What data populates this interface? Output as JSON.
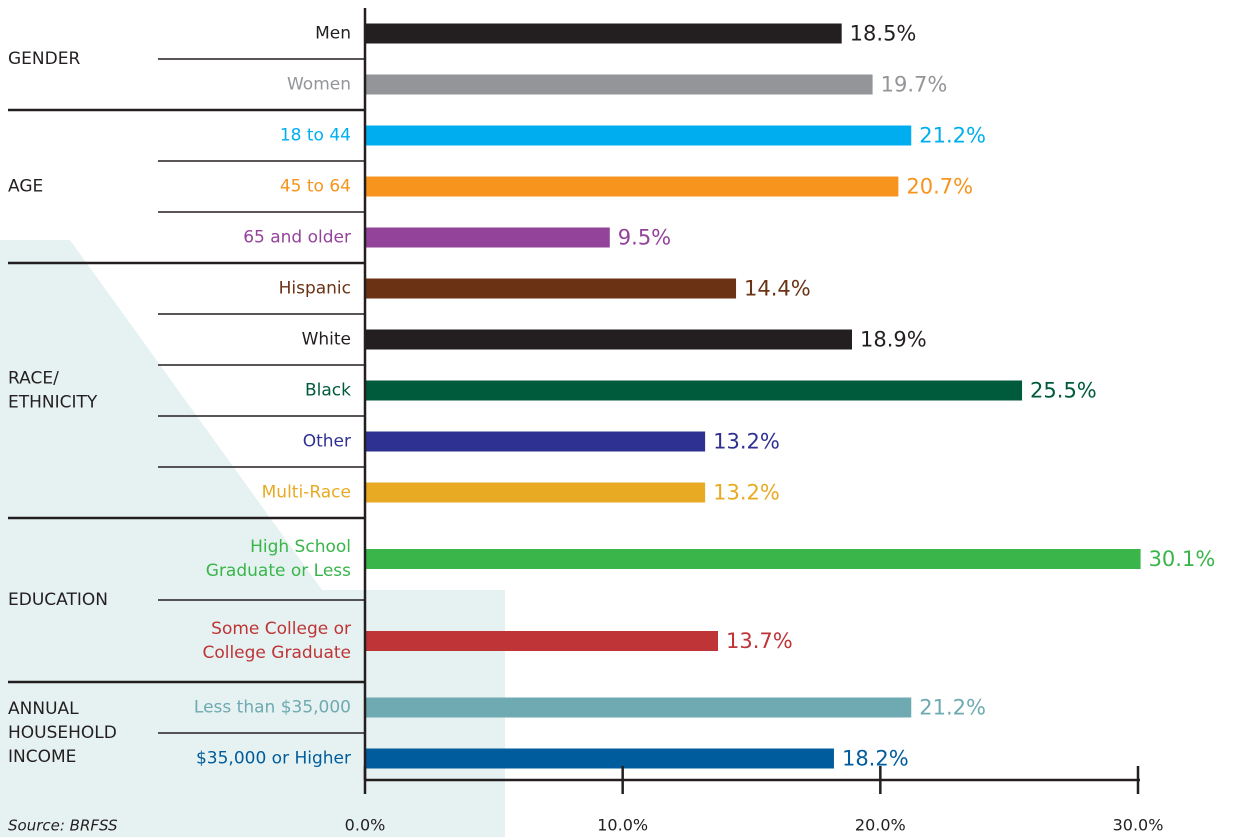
{
  "chart_data": {
    "type": "bar",
    "orientation": "horizontal",
    "groups": [
      {
        "name": [
          "GENDER"
        ],
        "categories": [
          [
            "Men"
          ],
          [
            "Women"
          ]
        ],
        "values": [
          18.5,
          19.7
        ],
        "value_labels": [
          "18.5%",
          "19.7%"
        ],
        "colors": [
          "#231f20",
          "#939598"
        ]
      },
      {
        "name": [
          "AGE"
        ],
        "categories": [
          [
            "18 to 44"
          ],
          [
            "45 to 64"
          ],
          [
            "65 and older"
          ]
        ],
        "values": [
          21.2,
          20.7,
          9.5
        ],
        "value_labels": [
          "21.2%",
          "20.7%",
          "9.5%"
        ],
        "colors": [
          "#00aeef",
          "#f7941d",
          "#93439a"
        ]
      },
      {
        "name": [
          "RACE/",
          "ETHNICITY"
        ],
        "categories": [
          [
            "Hispanic"
          ],
          [
            "White"
          ],
          [
            "Black"
          ],
          [
            "Other"
          ],
          [
            "Multi-Race"
          ]
        ],
        "values": [
          14.4,
          18.9,
          25.5,
          13.2,
          13.2
        ],
        "value_labels": [
          "14.4%",
          "18.9%",
          "25.5%",
          "13.2%",
          "13.2%"
        ],
        "colors": [
          "#6b3214",
          "#231f20",
          "#005a3c",
          "#2e3192",
          "#e8aa23"
        ]
      },
      {
        "name": [
          "EDUCATION"
        ],
        "categories": [
          [
            "High School",
            "Graduate or Less"
          ],
          [
            "Some College or",
            "College Graduate"
          ]
        ],
        "values": [
          30.1,
          13.7
        ],
        "value_labels": [
          "30.1%",
          "13.7%"
        ],
        "colors": [
          "#39b54a",
          "#be3437"
        ]
      },
      {
        "name": [
          "ANNUAL",
          "HOUSEHOLD",
          "INCOME"
        ],
        "categories": [
          [
            "Less than $35,000"
          ],
          [
            "$35,000 or Higher"
          ]
        ],
        "values": [
          21.2,
          18.2
        ],
        "value_labels": [
          "21.2%",
          "18.2%"
        ],
        "colors": [
          "#6fa9b1",
          "#005c9c"
        ]
      }
    ],
    "xlim": [
      0,
      30
    ],
    "xticks": [
      {
        "value": 0,
        "label": "0.0%"
      },
      {
        "value": 10,
        "label": "10.0%"
      },
      {
        "value": 20,
        "label": "20.0%"
      },
      {
        "value": 30,
        "label": "30.0%"
      }
    ],
    "source": "Source: BRFSS"
  }
}
